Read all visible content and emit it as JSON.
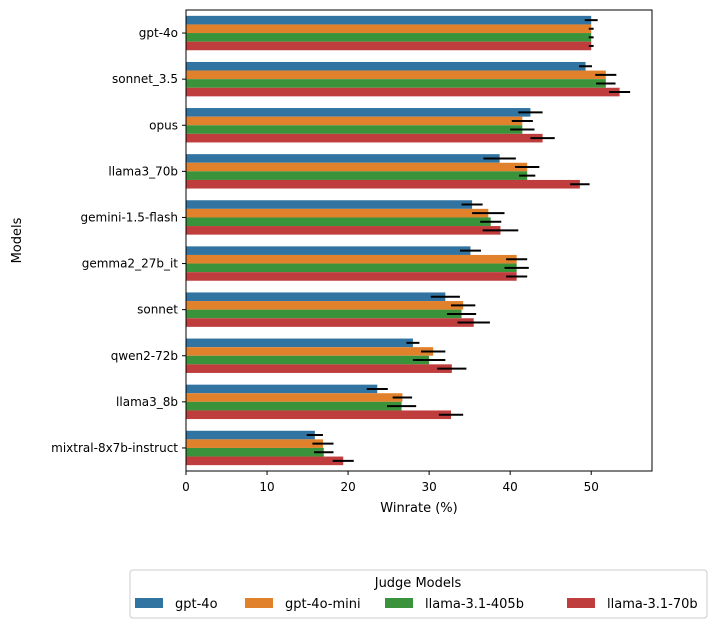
{
  "chart_data": {
    "type": "bar",
    "orientation": "horizontal",
    "title": "",
    "xlabel": "Winrate (%)",
    "ylabel": "Models",
    "xlim": [
      0,
      57.5
    ],
    "xticks": [
      0,
      10,
      20,
      30,
      40,
      50
    ],
    "grid": false,
    "categories": [
      "gpt-4o",
      "sonnet_3.5",
      "opus",
      "llama3_70b",
      "gemini-1.5-flash",
      "gemma2_27b_it",
      "sonnet",
      "qwen2-72b",
      "llama3_8b",
      "mixtral-8x7b-instruct"
    ],
    "series": [
      {
        "name": "gpt-4o",
        "color": "#3274a1",
        "values": [
          50.0,
          49.3,
          42.5,
          38.7,
          35.3,
          35.1,
          32.0,
          28.0,
          23.6,
          15.9
        ],
        "errors": [
          0.8,
          0.8,
          1.5,
          2.0,
          1.3,
          1.3,
          1.8,
          0.8,
          1.3,
          1.0
        ]
      },
      {
        "name": "gpt-4o-mini",
        "color": "#e1812c",
        "values": [
          50.0,
          51.8,
          41.5,
          42.1,
          37.3,
          40.8,
          34.2,
          30.5,
          26.7,
          16.9
        ],
        "errors": [
          0.3,
          1.3,
          1.3,
          1.5,
          2.0,
          1.3,
          1.5,
          1.5,
          1.2,
          1.3
        ]
      },
      {
        "name": "llama-3.1-405b",
        "color": "#3a923a",
        "values": [
          50.0,
          51.8,
          41.5,
          42.1,
          37.6,
          40.8,
          34.0,
          30.0,
          26.6,
          17.0
        ],
        "errors": [
          0.3,
          1.2,
          1.5,
          1.0,
          1.3,
          1.5,
          1.8,
          2.0,
          1.8,
          1.2
        ]
      },
      {
        "name": "llama-3.1-70b",
        "color": "#c03d3e",
        "values": [
          50.0,
          53.5,
          44.0,
          48.6,
          38.8,
          40.8,
          35.5,
          32.8,
          32.7,
          19.4
        ],
        "errors": [
          0.3,
          1.3,
          1.5,
          1.2,
          2.2,
          1.3,
          2.0,
          1.8,
          1.5,
          1.3
        ]
      }
    ],
    "legend": {
      "title": "Judge Models",
      "placement": "bottom-center",
      "columns": 4
    }
  }
}
